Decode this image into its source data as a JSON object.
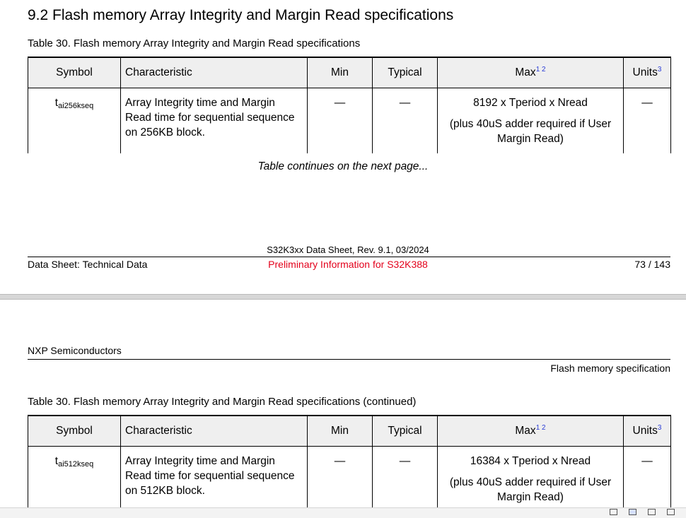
{
  "page1": {
    "section_title": "9.2  Flash memory Array Integrity and Margin Read specifications",
    "table_caption": "Table 30.  Flash memory Array Integrity and Margin Read specifications",
    "table": {
      "headers": {
        "symbol": "Symbol",
        "characteristic": "Characteristic",
        "min": "Min",
        "typical": "Typical",
        "max": "Max",
        "max_footnotes": "1 2",
        "units": "Units",
        "units_footnote": "3"
      },
      "row": {
        "symbol_base": "t",
        "symbol_sub": "ai256kseq",
        "characteristic": "Array Integrity time and Margin Read time for sequential sequence on 256KB block.",
        "min": "—",
        "typical": "—",
        "max_line1": "8192 x Tperiod x Nread",
        "max_line2": "(plus 40uS adder required if User Margin Read)",
        "units": "—"
      }
    },
    "continues_note": "Table continues on the next page...",
    "footer": {
      "doc_title": "S32K3xx Data Sheet, Rev. 9.1, 03/2024",
      "left": "Data Sheet: Technical Data",
      "center": "Preliminary Information for S32K388",
      "page": "73 / 143"
    }
  },
  "page2": {
    "header_left": "NXP Semiconductors",
    "header_right": "Flash memory specification",
    "table_caption": "Table 30.  Flash memory Array Integrity and Margin Read specifications (continued)",
    "table": {
      "headers": {
        "symbol": "Symbol",
        "characteristic": "Characteristic",
        "min": "Min",
        "typical": "Typical",
        "max": "Max",
        "max_footnotes": "1 2",
        "units": "Units",
        "units_footnote": "3"
      },
      "row": {
        "symbol_base": "t",
        "symbol_sub": "ai512kseq",
        "characteristic": "Array Integrity time and Margin Read time for sequential sequence on 512KB block.",
        "min": "—",
        "typical": "—",
        "max_line1": "16384 x Tperiod x Nread",
        "max_line2": "(plus 40uS adder required if User Margin Read)",
        "units": "—"
      }
    }
  },
  "viewer": {
    "view_buttons": [
      "single-page-icon",
      "continuous-page-icon",
      "two-page-icon",
      "two-page-continuous-icon"
    ]
  }
}
